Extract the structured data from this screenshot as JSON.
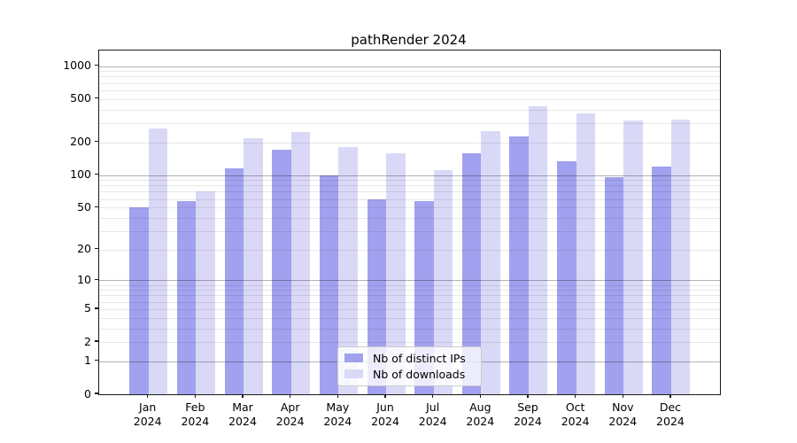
{
  "chart_data": {
    "type": "bar",
    "title": "pathRender 2024",
    "categories": [
      "Jan",
      "Feb",
      "Mar",
      "Apr",
      "May",
      "Jun",
      "Jul",
      "Aug",
      "Sep",
      "Oct",
      "Nov",
      "Dec"
    ],
    "x_tick_year_line": "2024",
    "series": [
      {
        "name": "Nb of distinct IPs",
        "color": "#a1a1ef",
        "values": [
          50,
          57,
          115,
          170,
          100,
          60,
          57,
          160,
          225,
          135,
          95,
          120
        ]
      },
      {
        "name": "Nb of downloads",
        "color": "#d9d9f7",
        "values": [
          270,
          70,
          220,
          250,
          180,
          160,
          110,
          255,
          430,
          365,
          315,
          325
        ]
      }
    ],
    "y_axis": {
      "scale": "log1p",
      "ylim": [
        0,
        1400
      ],
      "tick_labels": [
        "0",
        "1",
        "2",
        "5",
        "10",
        "20",
        "50",
        "100",
        "200",
        "500",
        "1000"
      ],
      "tick_values": [
        0,
        1,
        2,
        5,
        10,
        20,
        50,
        100,
        200,
        500,
        1000
      ],
      "major_grid_values": [
        1,
        10,
        100,
        1000
      ],
      "minor_grid_values": [
        2,
        3,
        4,
        5,
        6,
        7,
        8,
        9,
        20,
        30,
        40,
        50,
        60,
        70,
        80,
        90,
        200,
        300,
        400,
        500,
        600,
        700,
        800,
        900
      ]
    },
    "legend_position": "lower center",
    "grid": true
  }
}
